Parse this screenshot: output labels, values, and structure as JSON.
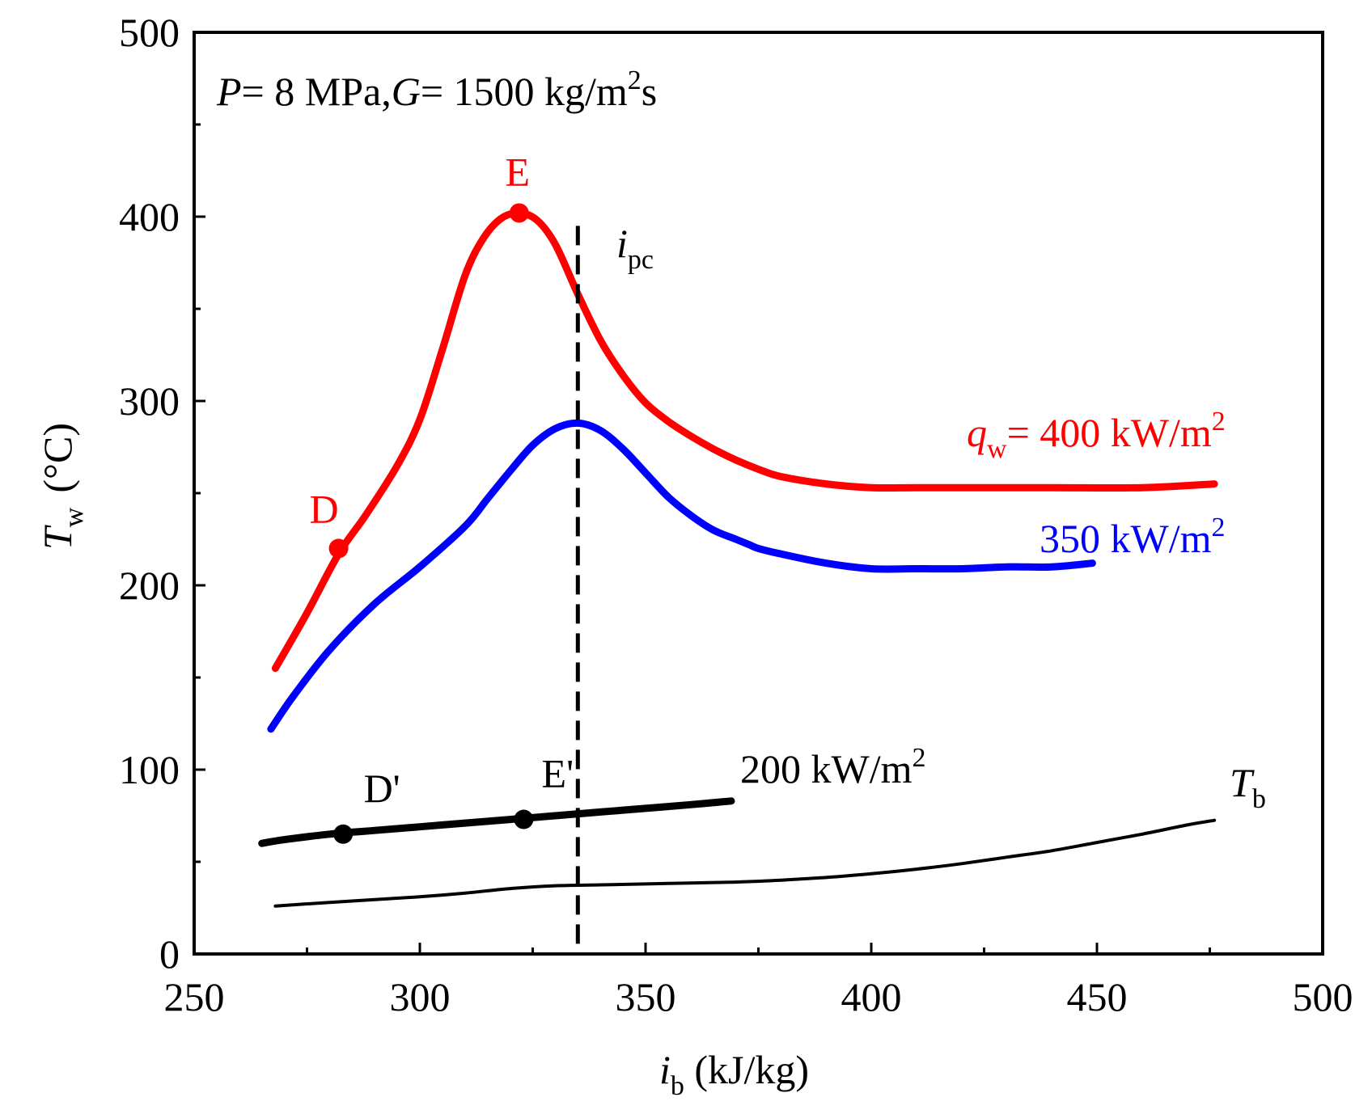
{
  "chart_data": {
    "type": "line",
    "title": "",
    "condition": {
      "p_symbol": "P",
      "p_text": "= 8 MPa,",
      "g_symbol": "G",
      "g_text": "= 1500 kg/m",
      "g_exp": "2",
      "g_tail": "s"
    },
    "xlabel": {
      "symbol": "i",
      "sub": "b",
      "unit": " (kJ/kg)"
    },
    "ylabel": {
      "symbol": "T",
      "sub": "w",
      "unit": "(°C)"
    },
    "xlim": [
      250,
      500
    ],
    "ylim": [
      0,
      500
    ],
    "xticks": [
      250,
      300,
      350,
      400,
      450,
      500
    ],
    "yticks": [
      0,
      100,
      200,
      300,
      400,
      500
    ],
    "x_minor_step": 25,
    "y_minor_step": 50,
    "series": [
      {
        "name": "q_w = 400 kW/m2",
        "label_prefix": "q",
        "label_sub": "w",
        "label_text": "= 400 kW/m",
        "label_exp": "2",
        "color": "#ff0000",
        "x": [
          268,
          275,
          282,
          288,
          295,
          300,
          305,
          310,
          314,
          318,
          322,
          326,
          330,
          335,
          340,
          345,
          350,
          355,
          360,
          365,
          370,
          375,
          380,
          390,
          400,
          410,
          420,
          440,
          460,
          476
        ],
        "y": [
          155,
          185,
          217,
          238,
          265,
          290,
          328,
          368,
          388,
          399,
          402,
          398,
          385,
          358,
          333,
          314,
          299,
          289,
          281,
          274,
          268,
          263,
          259,
          255,
          253,
          253,
          253,
          253,
          253,
          255
        ]
      },
      {
        "name": "350 kW/m2",
        "label_text": "350 kW/m",
        "label_exp": "2",
        "color": "#0000ff",
        "x": [
          267,
          272,
          280,
          290,
          300,
          310,
          315,
          320,
          325,
          330,
          335,
          340,
          345,
          350,
          355,
          360,
          365,
          370,
          373,
          375,
          380,
          390,
          400,
          410,
          420,
          430,
          440,
          449
        ],
        "y": [
          122,
          140,
          165,
          190,
          210,
          232,
          247,
          262,
          276,
          285,
          288,
          284,
          274,
          261,
          248,
          238,
          230,
          225,
          222,
          220,
          217,
          212,
          209,
          209,
          209,
          210,
          210,
          212
        ]
      },
      {
        "name": "200 kW/m2",
        "label_text": "200 kW/m",
        "label_exp": "2",
        "color": "#000000",
        "x": [
          265,
          270,
          280,
          290,
          300,
          310,
          320,
          330,
          340,
          350,
          360,
          369
        ],
        "y": [
          60,
          62,
          65,
          67,
          69,
          71,
          73,
          75,
          77,
          79,
          81,
          83
        ]
      },
      {
        "name": "T_b",
        "label_prefix": "T",
        "label_sub": "b",
        "color": "#000000",
        "x": [
          268,
          280,
          290,
          300,
          310,
          320,
          330,
          340,
          350,
          360,
          370,
          380,
          390,
          400,
          410,
          420,
          430,
          440,
          450,
          460,
          470,
          476
        ],
        "y": [
          26,
          28,
          29.5,
          31,
          33,
          35.5,
          37,
          37.5,
          38,
          38.5,
          39,
          40,
          41.5,
          43.5,
          46,
          49,
          52.5,
          56,
          60.5,
          65,
          70,
          72.5
        ]
      }
    ],
    "points": [
      {
        "label": "D",
        "x": 282,
        "y": 220,
        "color": "#ff0000"
      },
      {
        "label": "E",
        "x": 322,
        "y": 402,
        "color": "#ff0000"
      },
      {
        "label": "D'",
        "x": 283,
        "y": 65,
        "color": "#000000"
      },
      {
        "label": "E'",
        "x": 323,
        "y": 73,
        "color": "#000000"
      }
    ],
    "vline": {
      "x": 335,
      "label_symbol": "i",
      "label_sub": "pc"
    }
  }
}
